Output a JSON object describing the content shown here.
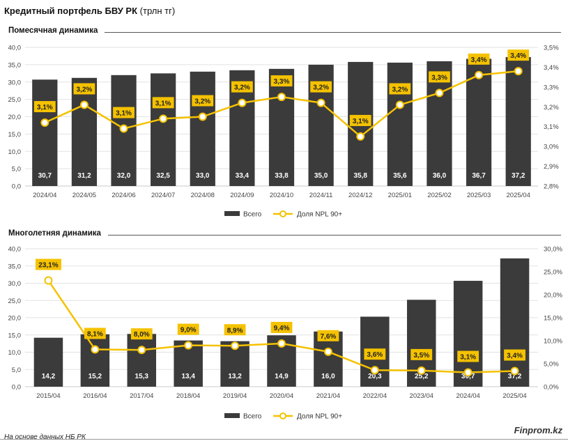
{
  "header": {
    "title_bold": "Кредитный портфель БВУ РК",
    "title_light": "(трлн тг)"
  },
  "footer": {
    "source": "На основе данных НБ РК",
    "brand": "Finprom.kz"
  },
  "colors": {
    "bar": "#3b3b3b",
    "line": "#f5c200",
    "label_box": "#f5c200",
    "grid": "#e2e2e2"
  },
  "chart_data": [
    {
      "type": "bar+line",
      "title": "Помесячная динамика",
      "categories": [
        "2024/04",
        "2024/05",
        "2024/06",
        "2024/07",
        "2024/08",
        "2024/09",
        "2024/10",
        "2024/11",
        "2024/12",
        "2025/01",
        "2025/02",
        "2025/03",
        "2025/04"
      ],
      "series": [
        {
          "name": "Всего",
          "kind": "bar",
          "axis": "left",
          "values": [
            30.7,
            31.2,
            32.0,
            32.5,
            33.0,
            33.4,
            33.8,
            35.0,
            35.8,
            35.6,
            36.0,
            36.7,
            37.2
          ],
          "labels": [
            "30,7",
            "31,2",
            "32,0",
            "32,5",
            "33,0",
            "33,4",
            "33,8",
            "35,0",
            "35,8",
            "35,6",
            "36,0",
            "36,7",
            "37,2"
          ]
        },
        {
          "name": "Доля NPL 90+",
          "kind": "line",
          "axis": "right",
          "values": [
            3.12,
            3.21,
            3.09,
            3.14,
            3.15,
            3.22,
            3.25,
            3.22,
            3.05,
            3.21,
            3.27,
            3.36,
            3.38
          ],
          "labels": [
            "3,1%",
            "3,2%",
            "3,1%",
            "3,1%",
            "3,2%",
            "3,2%",
            "3,3%",
            "3,2%",
            "3,1%",
            "3,2%",
            "3,3%",
            "3,4%",
            "3,4%"
          ]
        }
      ],
      "y_left": {
        "min": 0,
        "max": 40,
        "step": 5,
        "ticks": [
          "0,0",
          "5,0",
          "10,0",
          "15,0",
          "20,0",
          "25,0",
          "30,0",
          "35,0",
          "40,0"
        ]
      },
      "y_right": {
        "min": 2.8,
        "max": 3.5,
        "step": 0.1,
        "ticks": [
          "2,8%",
          "2,9%",
          "3,0%",
          "3,1%",
          "3,2%",
          "3,3%",
          "3,4%",
          "3,5%"
        ]
      },
      "legend": {
        "placement": "bottom",
        "bar": "Всего",
        "line": "Доля NPL 90+"
      },
      "grid": true
    },
    {
      "type": "bar+line",
      "title": "Многолетняя динамика",
      "categories": [
        "2015/04",
        "2016/04",
        "2017/04",
        "2018/04",
        "2019/04",
        "2020/04",
        "2021/04",
        "2022/04",
        "2023/04",
        "2024/04",
        "2025/04"
      ],
      "series": [
        {
          "name": "Всего",
          "kind": "bar",
          "axis": "left",
          "values": [
            14.2,
            15.2,
            15.3,
            13.4,
            13.2,
            14.9,
            16.0,
            20.3,
            25.2,
            30.7,
            37.2
          ],
          "labels": [
            "14,2",
            "15,2",
            "15,3",
            "13,4",
            "13,2",
            "14,9",
            "16,0",
            "20,3",
            "25,2",
            "30,7",
            "37,2"
          ]
        },
        {
          "name": "Доля NPL 90+",
          "kind": "line",
          "axis": "right",
          "values": [
            23.1,
            8.1,
            8.0,
            9.0,
            8.9,
            9.4,
            7.6,
            3.6,
            3.5,
            3.1,
            3.4
          ],
          "labels": [
            "23,1%",
            "8,1%",
            "8,0%",
            "9,0%",
            "8,9%",
            "9,4%",
            "7,6%",
            "3,6%",
            "3,5%",
            "3,1%",
            "3,4%"
          ]
        }
      ],
      "y_left": {
        "min": 0,
        "max": 40,
        "step": 5,
        "ticks": [
          "0,0",
          "5,0",
          "10,0",
          "15,0",
          "20,0",
          "25,0",
          "30,0",
          "35,0",
          "40,0"
        ]
      },
      "y_right": {
        "min": 0,
        "max": 30,
        "step": 5,
        "ticks": [
          "0,0%",
          "5,0%",
          "10,0%",
          "15,0%",
          "20,0%",
          "25,0%",
          "30,0%"
        ]
      },
      "legend": {
        "placement": "bottom",
        "bar": "Всего",
        "line": "Доля NPL 90+"
      },
      "grid": true
    }
  ]
}
